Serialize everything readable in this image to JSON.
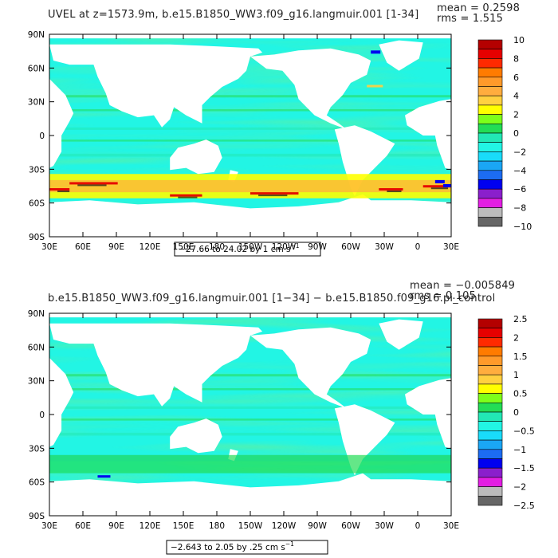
{
  "colors": {
    "background": "#ffffff",
    "land": "#ffffff",
    "frame": "#000000"
  },
  "palette": [
    "#666666",
    "#bbbbbb",
    "#e31ee3",
    "#8a1fcc",
    "#0000f0",
    "#1c6cf2",
    "#1aa6f5",
    "#19dcfa",
    "#22f5e4",
    "#22e8b5",
    "#22dd55",
    "#7dff1a",
    "#ffff00",
    "#ffd040",
    "#ffad3e",
    "#ff9a2a",
    "#ff7b00",
    "#ff2a00",
    "#e60000",
    "#b40000"
  ],
  "panels": [
    {
      "title": "UVEL at z=1573.9m, b.e15.B1850_WW3.f09_g16.langmuir.001 [1-34]",
      "stats": {
        "mean": "mean = 0.2598",
        "rms": "rms = 1.515"
      },
      "lat_ticks": [
        "90N",
        "60N",
        "30N",
        "0",
        "30S",
        "60S",
        "90S"
      ],
      "lon_ticks": [
        "30E",
        "60E",
        "90E",
        "120E",
        "150E",
        "180",
        "150W",
        "120W",
        "90W",
        "60W",
        "30W",
        "0",
        "30E"
      ],
      "colorbar_labels": [
        "10",
        "8",
        "6",
        "4",
        "2",
        "0",
        "−2",
        "−4",
        "−6",
        "−8",
        "−10"
      ],
      "range": "−27.66 to 24.02 by 1 cm s",
      "range_exp": "−1",
      "severity": 1.0
    },
    {
      "title": "b.e15.B1850_WW3.f09_g16.langmuir.001 [1−34] − b.e15.B1850.f09_g16.pi_control",
      "stats": {
        "mean": "mean = −0.005849",
        "rms": "rms = 0.105"
      },
      "lat_ticks": [
        "90N",
        "60N",
        "30N",
        "0",
        "30S",
        "60S",
        "90S"
      ],
      "lon_ticks": [
        "30E",
        "60E",
        "90E",
        "120E",
        "150E",
        "180",
        "150W",
        "120W",
        "90W",
        "60W",
        "30W",
        "0",
        "30E"
      ],
      "colorbar_labels": [
        "2.5",
        "2",
        "1.5",
        "1",
        "0.5",
        "0",
        "−0.5",
        "−1",
        "−1.5",
        "−2",
        "−2.5"
      ],
      "range": "−2.643 to 2.05 by .25 cm s",
      "range_exp": "−1",
      "severity": 0.25
    }
  ]
}
